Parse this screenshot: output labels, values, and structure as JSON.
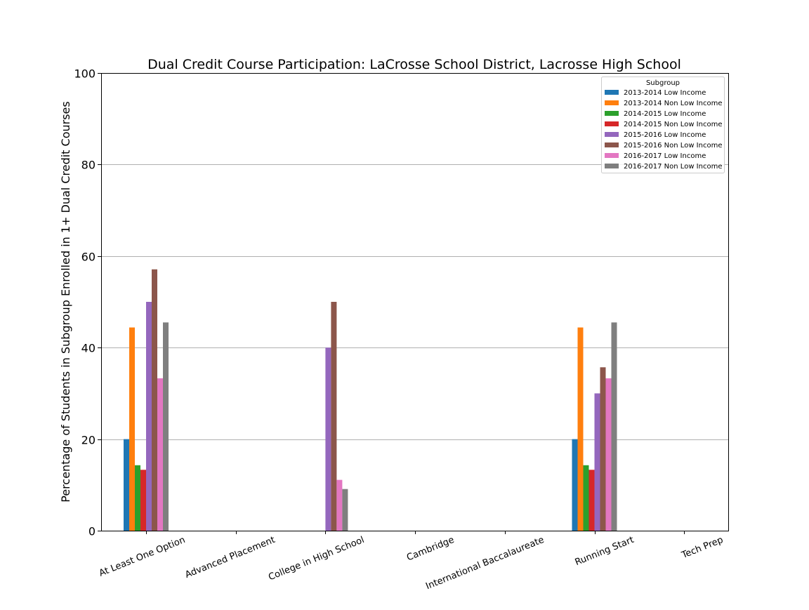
{
  "chart_data": {
    "type": "bar",
    "title": "Dual Credit Course Participation: LaCrosse School District, Lacrosse High School",
    "xlabel": "",
    "ylabel": "Percentage of Students in Subgroup Enrolled in 1+ Dual Credit Courses",
    "ylim": [
      0,
      100
    ],
    "yticks": [
      0,
      20,
      40,
      60,
      80,
      100
    ],
    "grid": "horizontal",
    "legend": {
      "title": "Subgroup",
      "placement": "top-right"
    },
    "categories": [
      "At Least One Option",
      "Advanced Placement",
      "College in High School",
      "Cambridge",
      "International Baccalaureate",
      "Running Start",
      "Tech Prep"
    ],
    "series": [
      {
        "name": "2013-2014 Low Income",
        "color": "#1f77b4",
        "values": [
          20,
          0,
          0,
          0,
          0,
          20,
          0
        ]
      },
      {
        "name": "2013-2014 Non Low Income",
        "color": "#ff7f0e",
        "values": [
          44.4,
          0,
          0,
          0,
          0,
          44.4,
          0
        ]
      },
      {
        "name": "2014-2015 Low Income",
        "color": "#2ca02c",
        "values": [
          14.3,
          0,
          0,
          0,
          0,
          14.3,
          0
        ]
      },
      {
        "name": "2014-2015 Non Low Income",
        "color": "#d62728",
        "values": [
          13.3,
          0,
          0,
          0,
          0,
          13.3,
          0
        ]
      },
      {
        "name": "2015-2016 Low Income",
        "color": "#9467bd",
        "values": [
          50,
          0,
          40,
          0,
          0,
          30,
          0
        ]
      },
      {
        "name": "2015-2016 Non Low Income",
        "color": "#8c564b",
        "values": [
          57.1,
          0,
          50,
          0,
          0,
          35.7,
          0
        ]
      },
      {
        "name": "2016-2017 Low Income",
        "color": "#e377c2",
        "values": [
          33.3,
          0,
          11.1,
          0,
          0,
          33.3,
          0
        ]
      },
      {
        "name": "2016-2017 Non Low Income",
        "color": "#7f7f7f",
        "values": [
          45.5,
          0,
          9.1,
          0,
          0,
          45.5,
          0
        ]
      }
    ]
  }
}
